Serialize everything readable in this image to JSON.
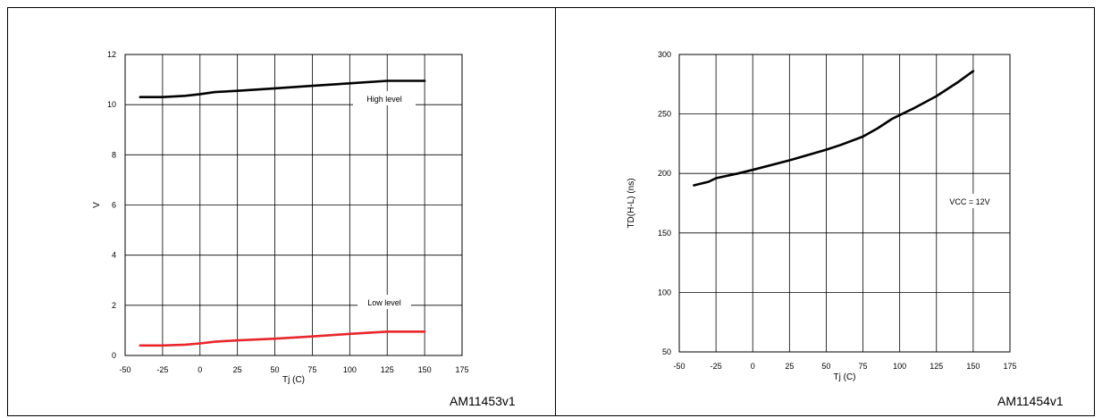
{
  "figures": [
    {
      "caption": ""
    },
    {
      "caption": ""
    }
  ],
  "chart_data": [
    {
      "type": "line",
      "title": "",
      "xlabel": "Tj (C)",
      "ylabel": "V",
      "xlim": [
        -50,
        175
      ],
      "ylim": [
        0,
        12
      ],
      "xticks": [
        -50,
        -25,
        0,
        25,
        50,
        75,
        100,
        125,
        150,
        175
      ],
      "yticks": [
        0,
        2,
        4,
        6,
        8,
        10,
        12
      ],
      "grid": true,
      "series": [
        {
          "name": "High level",
          "color": "#000000",
          "x": [
            -40,
            -25,
            -10,
            0,
            10,
            25,
            50,
            75,
            100,
            125,
            150
          ],
          "y": [
            10.3,
            10.3,
            10.35,
            10.42,
            10.5,
            10.55,
            10.65,
            10.75,
            10.85,
            10.95,
            10.95
          ]
        },
        {
          "name": "Low level",
          "color": "#e8262b",
          "x": [
            -40,
            -25,
            -10,
            0,
            10,
            25,
            50,
            75,
            100,
            125,
            150
          ],
          "y": [
            0.4,
            0.4,
            0.43,
            0.48,
            0.55,
            0.6,
            0.67,
            0.76,
            0.86,
            0.95,
            0.95
          ]
        }
      ],
      "annotations": [
        "High level",
        "Low level"
      ],
      "code": "AM11453v1"
    },
    {
      "type": "line",
      "title": "",
      "xlabel": "Tj (C)",
      "ylabel": "TD(H-L) (ns)",
      "xlim": [
        -50,
        175
      ],
      "ylim": [
        50,
        300
      ],
      "xticks": [
        -50,
        -25,
        0,
        25,
        50,
        75,
        100,
        125,
        150,
        175
      ],
      "yticks": [
        50,
        100,
        150,
        200,
        250,
        300
      ],
      "grid": true,
      "series": [
        {
          "name": "",
          "color": "#000000",
          "x": [
            -40,
            -30,
            -25,
            -10,
            0,
            25,
            50,
            60,
            75,
            85,
            95,
            110,
            125,
            140,
            150
          ],
          "y": [
            190,
            193,
            196,
            200,
            203,
            211,
            220,
            224,
            231,
            238,
            246,
            255,
            265,
            277,
            286
          ]
        }
      ],
      "annotations": [
        "VCC = 12V"
      ],
      "code": "AM11454v1"
    }
  ]
}
